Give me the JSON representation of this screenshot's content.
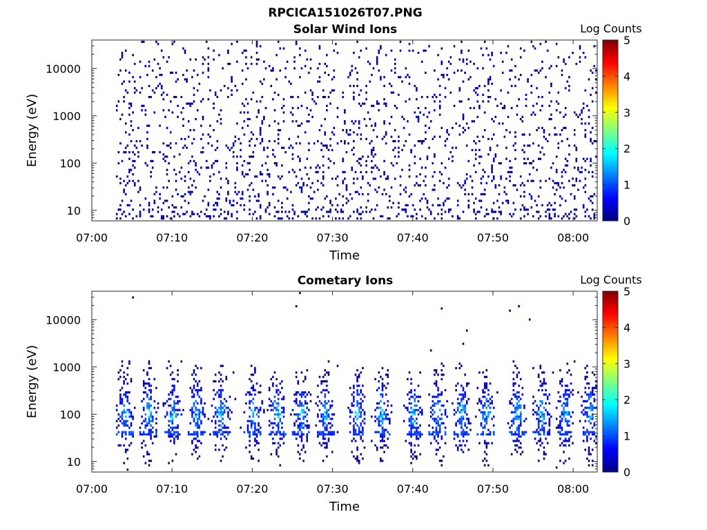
{
  "figure": {
    "title": "RPCICA151026T07.PNG"
  },
  "colormap": [
    "#000080",
    "#0000ff",
    "#0080ff",
    "#00ffff",
    "#80ff80",
    "#ffff00",
    "#ff8000",
    "#ff0000",
    "#800000"
  ],
  "chart_data": [
    {
      "type": "heatmap",
      "title": "Solar Wind Ions",
      "xlabel": "Time",
      "ylabel": "Energy (eV)",
      "x_ticks": [
        "07:00",
        "07:10",
        "07:20",
        "07:30",
        "07:40",
        "07:50",
        "08:00"
      ],
      "y_ticks": [
        "10",
        "100",
        "1000",
        "10000"
      ],
      "y_scale": "log",
      "xlim": [
        "07:00",
        "08:03"
      ],
      "ylim": [
        6,
        40000
      ],
      "colorbar": {
        "label": "Log Counts",
        "ticks": [
          "0",
          "1",
          "2",
          "3",
          "4",
          "5"
        ],
        "range": [
          0,
          5
        ]
      },
      "pattern": "sparse",
      "data_start": "07:03",
      "bursts": [],
      "z_range": [
        0,
        0.6
      ]
    },
    {
      "type": "heatmap",
      "title": "Cometary Ions",
      "xlabel": "Time",
      "ylabel": "Energy (eV)",
      "x_ticks": [
        "07:00",
        "07:10",
        "07:20",
        "07:30",
        "07:40",
        "07:50",
        "08:00"
      ],
      "y_ticks": [
        "10",
        "100",
        "1000",
        "10000"
      ],
      "y_scale": "log",
      "xlim": [
        "07:00",
        "08:03"
      ],
      "ylim": [
        6,
        40000
      ],
      "colorbar": {
        "label": "Log Counts",
        "ticks": [
          "0",
          "1",
          "2",
          "3",
          "4",
          "5"
        ],
        "range": [
          0,
          5
        ]
      },
      "pattern": "bursts",
      "data_start": "07:03",
      "bursts": [
        "07:04",
        "07:07",
        "07:10",
        "07:13",
        "07:16",
        "07:20",
        "07:23",
        "07:26",
        "07:29",
        "07:33",
        "07:36",
        "07:40",
        "07:43",
        "07:46",
        "07:49",
        "07:53",
        "07:56",
        "07:59",
        "08:02"
      ],
      "z_range": [
        0,
        2.0
      ]
    }
  ]
}
